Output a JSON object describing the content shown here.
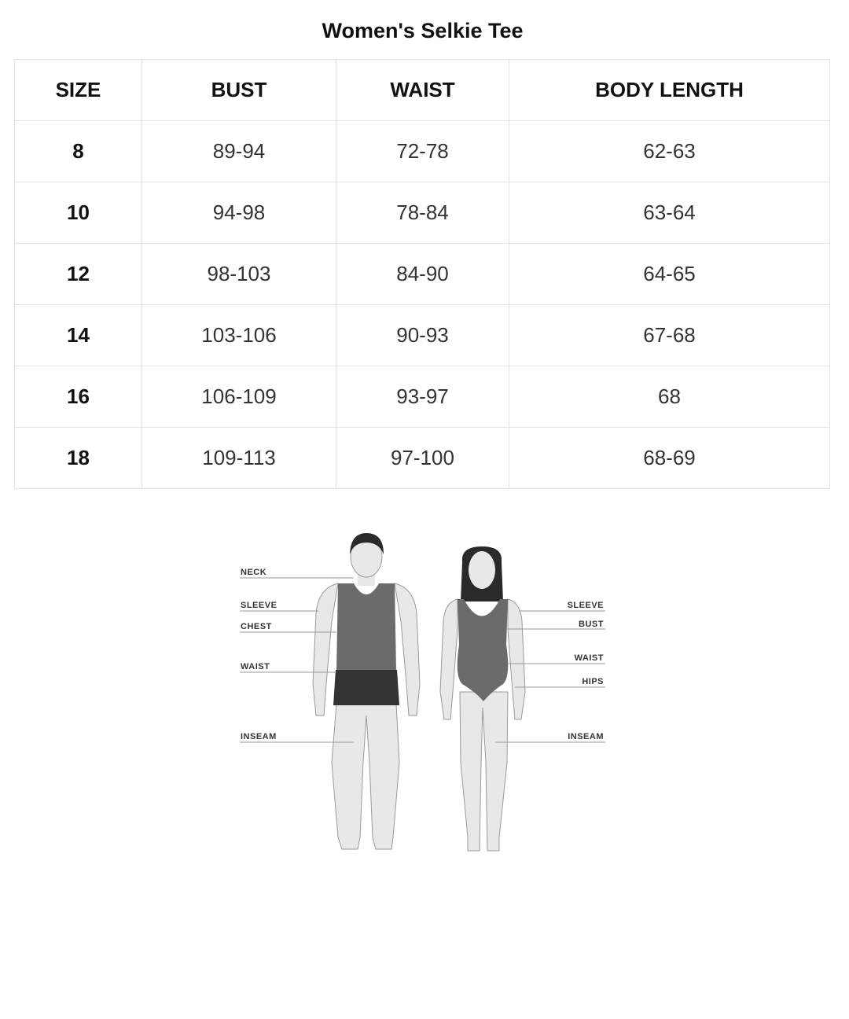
{
  "title": "Women's Selkie Tee",
  "table": {
    "headers": [
      "SIZE",
      "BUST",
      "WAIST",
      "BODY LENGTH"
    ],
    "rows": [
      [
        "8",
        "89-94",
        "72-78",
        "62-63"
      ],
      [
        "10",
        "94-98",
        "78-84",
        "63-64"
      ],
      [
        "12",
        "98-103",
        "84-90",
        "64-65"
      ],
      [
        "14",
        "103-106",
        "90-93",
        "67-68"
      ],
      [
        "16",
        "106-109",
        "93-97",
        "68"
      ],
      [
        "18",
        "109-113",
        "97-100",
        "68-69"
      ]
    ]
  },
  "figure": {
    "male_labels": [
      "NECK",
      "SLEEVE",
      "CHEST",
      "WAIST",
      "INSEAM"
    ],
    "female_labels": [
      "SLEEVE",
      "BUST",
      "WAIST",
      "HIPS",
      "INSEAM"
    ]
  }
}
